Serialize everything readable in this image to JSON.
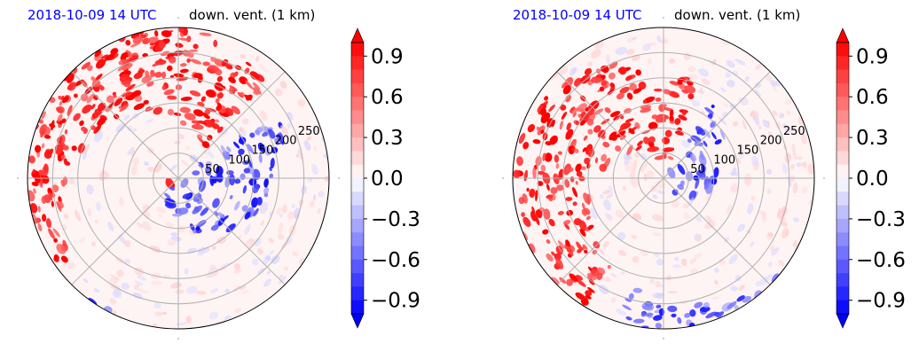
{
  "panels": [
    {
      "date_label": "2018-10-09 14 UTC",
      "field_label": "down. vent. (1 km)"
    },
    {
      "date_label": "2018-10-09 14 UTC",
      "field_label": "down. vent. (1 km)"
    }
  ],
  "colors": {
    "positive": "#ff0000",
    "negative": "#0000ff",
    "date_label": "#0000ff",
    "grid": "#b0b0b0"
  },
  "chart_data": [
    {
      "type": "heatmap",
      "projection": "polar",
      "radial_ticks": [
        "50",
        "100",
        "150",
        "200",
        "250"
      ],
      "radial_tick_values": [
        50,
        100,
        150,
        200,
        250
      ],
      "radial_max": 300,
      "angular_grid_deg": [
        0,
        45,
        90,
        135,
        180,
        225,
        270,
        315
      ],
      "colorbar": {
        "ticks": [
          "0.9",
          "0.6",
          "0.3",
          "0.0",
          "−0.3",
          "−0.6",
          "−0.9"
        ],
        "tick_values": [
          0.9,
          0.6,
          0.3,
          0.0,
          -0.3,
          -0.6,
          -0.9
        ],
        "range": [
          -1.0,
          1.0
        ],
        "levels": 20,
        "extend": "both",
        "colormap": "bwr"
      },
      "grid": true
    },
    {
      "type": "heatmap",
      "projection": "polar",
      "radial_ticks": [
        "50",
        "100",
        "150",
        "200",
        "250"
      ],
      "radial_tick_values": [
        50,
        100,
        150,
        200,
        250
      ],
      "radial_max": 300,
      "angular_grid_deg": [
        0,
        45,
        90,
        135,
        180,
        225,
        270,
        315
      ],
      "colorbar": {
        "ticks": [
          "0.9",
          "0.6",
          "0.3",
          "0.0",
          "−0.3",
          "−0.6",
          "−0.9"
        ],
        "tick_values": [
          0.9,
          0.6,
          0.3,
          0.0,
          -0.3,
          -0.6,
          -0.9
        ],
        "range": [
          -1.0,
          1.0
        ],
        "levels": 20,
        "extend": "both",
        "colormap": "bwr"
      },
      "grid": true
    }
  ]
}
